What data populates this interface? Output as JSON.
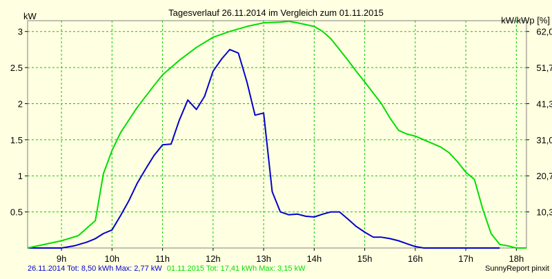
{
  "chart_data": {
    "type": "line",
    "title": "Tagesverlauf 26.11.2014 im Vergleich zum 01.11.2015",
    "ylabel_left": "kW",
    "ylabel_right": "kW/kWp [%]",
    "xlim": [
      8.33,
      18.2
    ],
    "ylim": [
      0,
      3.15
    ],
    "grid": true,
    "x_ticks": [
      9,
      10,
      11,
      12,
      13,
      14,
      15,
      16,
      17,
      18
    ],
    "x_tick_labels": [
      "9h",
      "10h",
      "11h",
      "12h",
      "13h",
      "14h",
      "15h",
      "16h",
      "17h",
      "18h"
    ],
    "y_left_ticks": [
      0.5,
      1,
      1.5,
      2,
      2.5,
      3
    ],
    "y_left_tick_labels": [
      "0.5",
      "1",
      "1.5",
      "2",
      "2.5",
      "3"
    ],
    "y_right_ticks": [
      0.5,
      1,
      1.5,
      2,
      2.5,
      3
    ],
    "y_right_tick_labels": [
      "10,3",
      "20,7",
      "31,0",
      "41,3",
      "51,7",
      "62,0"
    ],
    "series": [
      {
        "name": "26.11.2014 Tot: 8,50 kWh Max: 2,77 kW",
        "color": "#0000cc",
        "x": [
          8.33,
          8.75,
          9.0,
          9.25,
          9.5,
          9.67,
          9.83,
          10.0,
          10.17,
          10.33,
          10.5,
          10.67,
          10.83,
          11.0,
          11.17,
          11.33,
          11.5,
          11.67,
          11.83,
          12.0,
          12.17,
          12.33,
          12.5,
          12.67,
          12.83,
          13.0,
          13.17,
          13.33,
          13.5,
          13.67,
          13.83,
          14.0,
          14.17,
          14.33,
          14.5,
          14.67,
          14.83,
          15.0,
          15.17,
          15.33,
          15.5,
          15.67,
          15.83,
          16.0,
          16.17,
          16.33,
          16.5,
          16.67,
          16.83,
          17.0,
          17.17,
          17.33,
          17.5,
          17.67
        ],
        "y": [
          0,
          0,
          0,
          0.03,
          0.08,
          0.13,
          0.2,
          0.25,
          0.45,
          0.65,
          0.9,
          1.1,
          1.28,
          1.43,
          1.44,
          1.77,
          2.05,
          1.92,
          2.1,
          2.45,
          2.62,
          2.75,
          2.7,
          2.3,
          1.84,
          1.87,
          0.78,
          0.5,
          0.46,
          0.47,
          0.44,
          0.43,
          0.47,
          0.5,
          0.5,
          0.4,
          0.3,
          0.22,
          0.15,
          0.15,
          0.13,
          0.1,
          0.06,
          0.02,
          0.0,
          0.0,
          0,
          0,
          0,
          0,
          0,
          0,
          0,
          0
        ]
      },
      {
        "name": "01.11.2015 Tot: 17,41 kWh Max: 3,15 kW",
        "color": "#00dd00",
        "x": [
          8.33,
          9.0,
          9.33,
          9.67,
          9.83,
          10.0,
          10.17,
          10.5,
          10.83,
          11.0,
          11.33,
          11.67,
          12.0,
          12.33,
          12.67,
          13.0,
          13.33,
          13.5,
          13.67,
          14.0,
          14.17,
          14.33,
          14.5,
          14.67,
          14.83,
          15.0,
          15.33,
          15.5,
          15.67,
          15.83,
          16.0,
          16.17,
          16.5,
          16.67,
          16.83,
          17.0,
          17.17,
          17.33,
          17.5,
          17.67,
          17.83,
          18.0,
          18.2
        ],
        "y": [
          0,
          0.1,
          0.17,
          0.38,
          1.03,
          1.35,
          1.6,
          1.95,
          2.25,
          2.4,
          2.6,
          2.78,
          2.92,
          3.0,
          3.07,
          3.12,
          3.13,
          3.14,
          3.12,
          3.07,
          3.0,
          2.9,
          2.75,
          2.6,
          2.45,
          2.3,
          2.0,
          1.8,
          1.63,
          1.58,
          1.55,
          1.5,
          1.4,
          1.32,
          1.2,
          1.05,
          0.95,
          0.55,
          0.2,
          0.05,
          0.03,
          0,
          0
        ]
      }
    ]
  },
  "footer": {
    "legend_2014": "26.11.2014 Tot: 8,50 kWh Max: 2,77 kW",
    "legend_2015": "01.11.2015 Tot: 17,41 kWh Max: 3,15 kW",
    "credit": "SunnyReport pinxit"
  },
  "colors": {
    "background": "#ffffe1",
    "grid": "#00cc00",
    "series_2014": "#0000cc",
    "series_2015": "#00dd00"
  }
}
